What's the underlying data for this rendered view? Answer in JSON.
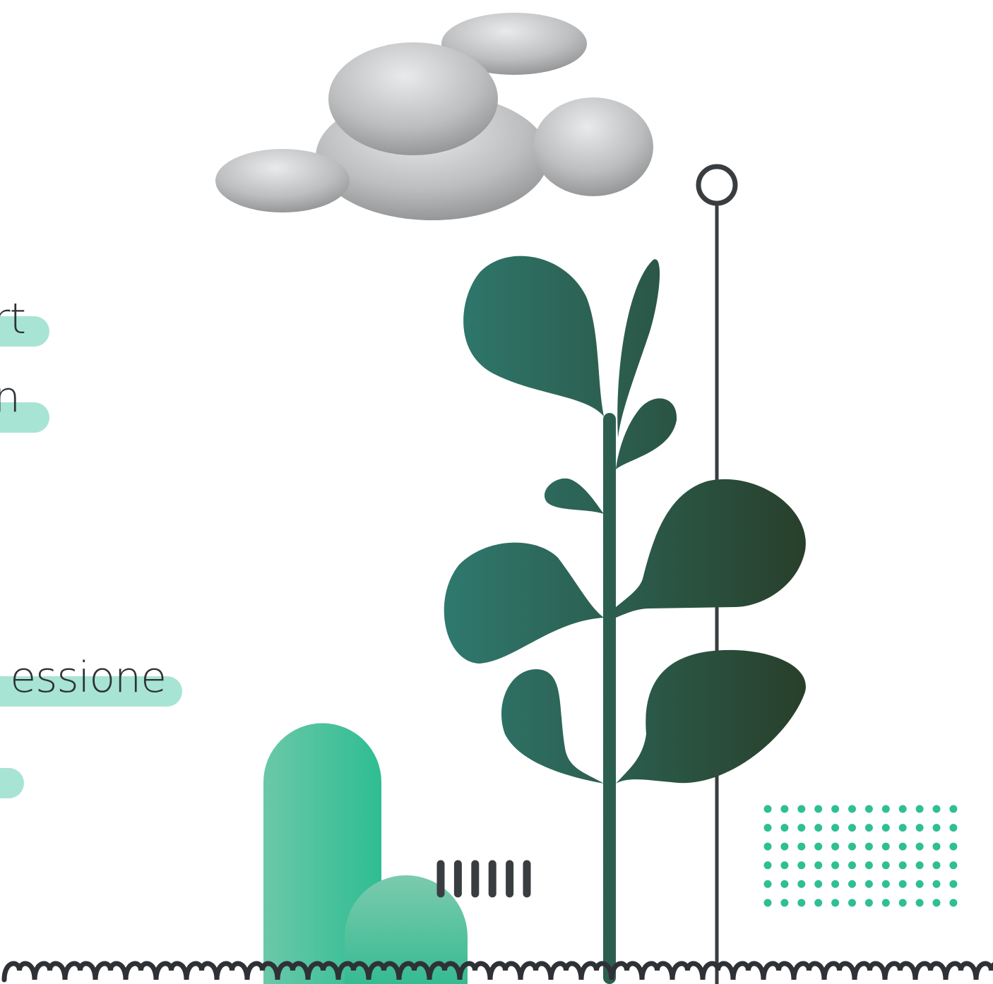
{
  "menu": {
    "items": [
      "rt",
      "n",
      "essione"
    ]
  }
}
